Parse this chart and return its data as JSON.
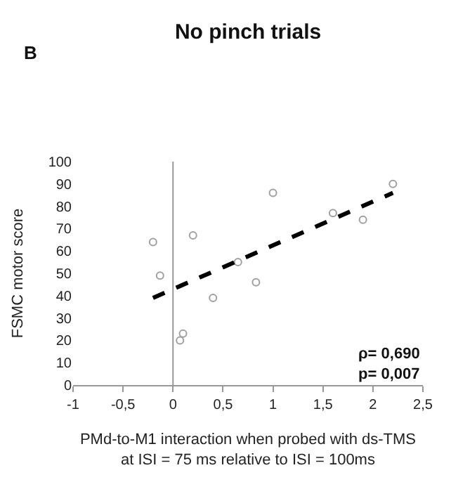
{
  "chart_data": {
    "type": "scatter",
    "title": "No pinch trials",
    "xlabel": "PMd-to-M1 interaction when probed with ds-TMS\nat ISI = 75 ms relative to ISI = 100ms",
    "ref_lines": [
      {
        "axis": "x",
        "value": 0,
        "color": "#999999"
      }
    ],
    "ylabel": "FSMC motor score",
    "annotations": [
      "B",
      "ρ= 0,690",
      "p= 0,007"
    ],
    "series": [
      {
        "color": "#a0a0a0",
        "marker": "circle",
        "x": [
          -0.2,
          -0.13,
          0.07,
          0.1,
          0.2,
          0.4,
          0.65,
          0.83,
          1.0,
          1.6,
          1.9,
          2.2
        ],
        "values": [
          64,
          49,
          20,
          23,
          67,
          39,
          55,
          46,
          86,
          77,
          74,
          90
        ]
      },
      {
        "type": "line",
        "color": "#000000",
        "line_style": "dashed",
        "x": [
          -0.2,
          2.2
        ],
        "values": [
          39,
          86
        ]
      }
    ],
    "xlim": [
      -1,
      2.5
    ],
    "xticks": [
      -1,
      {
        "value": -0.5,
        "label": "-0,5"
      },
      0,
      {
        "value": 0.5,
        "label": "0,5"
      },
      1,
      {
        "value": 1.5,
        "label": "1,5"
      },
      2,
      {
        "value": 2.5,
        "label": "2,5"
      }
    ],
    "ylim": [
      0,
      100
    ],
    "yticks": [
      0,
      10,
      20,
      30,
      40,
      50,
      60,
      70,
      80,
      90,
      100
    ],
    "tick_labels": "xy"
  }
}
